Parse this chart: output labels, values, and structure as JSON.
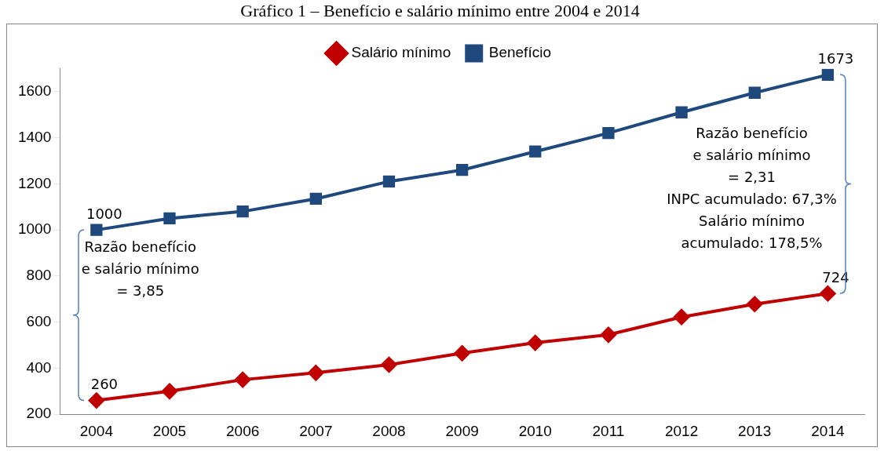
{
  "chart_data": {
    "type": "line",
    "title": "Gráfico 1 – Benefício e salário mínimo entre 2004 e 2014",
    "categories": [
      "2004",
      "2005",
      "2006",
      "2007",
      "2008",
      "2009",
      "2010",
      "2011",
      "2012",
      "2013",
      "2014"
    ],
    "series": [
      {
        "name": "Salário mínimo",
        "color": "#c00000",
        "marker": "diamond",
        "values": [
          260,
          300,
          350,
          380,
          415,
          465,
          510,
          545,
          622,
          678,
          724
        ],
        "value_labels": [
          "260",
          null,
          null,
          null,
          null,
          null,
          null,
          null,
          null,
          null,
          "724"
        ]
      },
      {
        "name": "Benefício",
        "color": "#1f497d",
        "marker": "square",
        "values": [
          1000,
          1050,
          1080,
          1135,
          1210,
          1260,
          1340,
          1420,
          1510,
          1595,
          1673
        ],
        "value_labels": [
          "1000",
          null,
          null,
          null,
          null,
          null,
          null,
          null,
          null,
          null,
          "1673"
        ]
      }
    ],
    "ylim": [
      200,
      1700
    ],
    "yticks": [
      200,
      400,
      600,
      800,
      1000,
      1200,
      1400,
      1600
    ],
    "grid": false,
    "legend": "top",
    "line_style": "solid",
    "annotations": [
      "Razão benefício\ne salário mínimo\n= 3,85",
      "Razão benefício\ne salário mínimo\n= 2,31\nINPC acumulado: 67,3%\nSalário mínimo\nacumulado: 178,5%"
    ]
  }
}
